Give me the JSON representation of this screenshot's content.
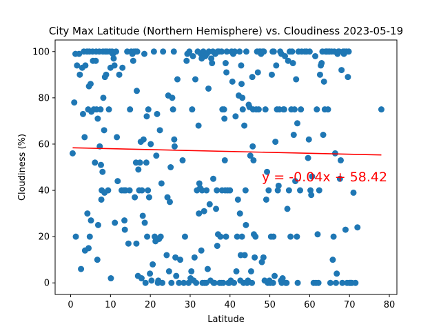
{
  "colors": {
    "points": "#1f77b4",
    "regression": "#ff0000",
    "annotation": "#ff0000",
    "axes": "#000000"
  },
  "chart_data": {
    "type": "scatter",
    "title": "City Max Latitude (Northern Hemisphere) vs. Cloudiness 2023-05-19",
    "xlabel": "Latitude",
    "ylabel": "Cloudiness (%)",
    "xlim": [
      -3.9,
      81.9
    ],
    "ylim": [
      -5,
      105
    ],
    "xticks": [
      0,
      10,
      20,
      30,
      40,
      50,
      60,
      70,
      80
    ],
    "yticks": [
      0,
      20,
      40,
      60,
      80,
      100
    ],
    "grid": false,
    "regression": {
      "slope": -0.04,
      "intercept": 58.42,
      "x_start": 0.5,
      "x_end": 78,
      "label": "y = -0.04x + 58.42",
      "label_x": 48,
      "label_y": 46
    },
    "points": [
      [
        0.5,
        56
      ],
      [
        0.9,
        78
      ],
      [
        1.2,
        99
      ],
      [
        1.3,
        20
      ],
      [
        1.6,
        94
      ],
      [
        2.1,
        99
      ],
      [
        2.3,
        90
      ],
      [
        2.6,
        6
      ],
      [
        2.9,
        93
      ],
      [
        3.1,
        73
      ],
      [
        3.3,
        100
      ],
      [
        3.5,
        63
      ],
      [
        3.6,
        14
      ],
      [
        3.7,
        94
      ],
      [
        4.1,
        100
      ],
      [
        4.2,
        30
      ],
      [
        4.4,
        75
      ],
      [
        4.5,
        15
      ],
      [
        4.6,
        85
      ],
      [
        4.7,
        100
      ],
      [
        4.8,
        20
      ],
      [
        5.0,
        86
      ],
      [
        5.1,
        27
      ],
      [
        5.2,
        74
      ],
      [
        5.5,
        100
      ],
      [
        5.6,
        96
      ],
      [
        5.8,
        75
      ],
      [
        6.1,
        52
      ],
      [
        6.3,
        96
      ],
      [
        6.4,
        100
      ],
      [
        6.5,
        75
      ],
      [
        6.7,
        10
      ],
      [
        6.8,
        71
      ],
      [
        6.9,
        25
      ],
      [
        7.2,
        100
      ],
      [
        7.3,
        59
      ],
      [
        7.5,
        75
      ],
      [
        7.6,
        51
      ],
      [
        7.7,
        36
      ],
      [
        7.8,
        40
      ],
      [
        8.0,
        48
      ],
      [
        8.1,
        100
      ],
      [
        8.2,
        80
      ],
      [
        8.4,
        66
      ],
      [
        8.5,
        39
      ],
      [
        8.6,
        89
      ],
      [
        8.7,
        100
      ],
      [
        8.9,
        90
      ],
      [
        9.1,
        100
      ],
      [
        9.4,
        40
      ],
      [
        9.6,
        75
      ],
      [
        9.8,
        100
      ],
      [
        10.0,
        93
      ],
      [
        10.1,
        2
      ],
      [
        10.4,
        100
      ],
      [
        10.6,
        99
      ],
      [
        10.8,
        97
      ],
      [
        11.0,
        94
      ],
      [
        11.1,
        26
      ],
      [
        11.4,
        100
      ],
      [
        11.6,
        63
      ],
      [
        11.8,
        44
      ],
      [
        12.2,
        90
      ],
      [
        12.8,
        40
      ],
      [
        13.0,
        93
      ],
      [
        13.4,
        40
      ],
      [
        13.5,
        27
      ],
      [
        13.6,
        23
      ],
      [
        13.8,
        40
      ],
      [
        14.2,
        100
      ],
      [
        14.5,
        17
      ],
      [
        14.8,
        40
      ],
      [
        14.9,
        75
      ],
      [
        15.2,
        100
      ],
      [
        15.5,
        99
      ],
      [
        15.7,
        96
      ],
      [
        15.9,
        100
      ],
      [
        16.1,
        37
      ],
      [
        16.3,
        100
      ],
      [
        16.4,
        52
      ],
      [
        16.5,
        17
      ],
      [
        16.6,
        83
      ],
      [
        16.7,
        100
      ],
      [
        16.9,
        3
      ],
      [
        17.0,
        49
      ],
      [
        17.2,
        40
      ],
      [
        17.4,
        52
      ],
      [
        17.6,
        61
      ],
      [
        17.8,
        2
      ],
      [
        17.9,
        40
      ],
      [
        18.1,
        29
      ],
      [
        18.3,
        62
      ],
      [
        18.5,
        99
      ],
      [
        18.6,
        26
      ],
      [
        18.8,
        0
      ],
      [
        19.0,
        52
      ],
      [
        19.1,
        72
      ],
      [
        19.2,
        20
      ],
      [
        19.4,
        40
      ],
      [
        19.5,
        75
      ],
      [
        19.7,
        37
      ],
      [
        19.9,
        4
      ],
      [
        20.1,
        60
      ],
      [
        20.3,
        1
      ],
      [
        20.6,
        8
      ],
      [
        20.9,
        100
      ],
      [
        21.1,
        20
      ],
      [
        21.3,
        18
      ],
      [
        21.5,
        55
      ],
      [
        21.7,
        73
      ],
      [
        21.9,
        0
      ],
      [
        22.0,
        1
      ],
      [
        22.2,
        19
      ],
      [
        22.4,
        66
      ],
      [
        22.6,
        20
      ],
      [
        22.8,
        43
      ],
      [
        23.0,
        0
      ],
      [
        23.2,
        100
      ],
      [
        24.1,
        12
      ],
      [
        24.3,
        37
      ],
      [
        24.5,
        81
      ],
      [
        24.7,
        5
      ],
      [
        24.9,
        35
      ],
      [
        25.1,
        50
      ],
      [
        25.3,
        0
      ],
      [
        25.5,
        80
      ],
      [
        25.7,
        75
      ],
      [
        25.9,
        100
      ],
      [
        26.0,
        62
      ],
      [
        26.1,
        59
      ],
      [
        26.3,
        11
      ],
      [
        26.5,
        3
      ],
      [
        26.8,
        88
      ],
      [
        27.2,
        0
      ],
      [
        27.5,
        10
      ],
      [
        28.1,
        53
      ],
      [
        28.4,
        0
      ],
      [
        28.7,
        20
      ],
      [
        29.1,
        96
      ],
      [
        29.3,
        99
      ],
      [
        29.6,
        0
      ],
      [
        29.8,
        100
      ],
      [
        30.1,
        2
      ],
      [
        30.3,
        5
      ],
      [
        30.5,
        75
      ],
      [
        30.7,
        98
      ],
      [
        30.9,
        1
      ],
      [
        31.1,
        11
      ],
      [
        31.3,
        88
      ],
      [
        31.5,
        0
      ],
      [
        31.7,
        40
      ],
      [
        31.9,
        100
      ],
      [
        32.1,
        68
      ],
      [
        32.2,
        30
      ],
      [
        32.3,
        43
      ],
      [
        32.5,
        41
      ],
      [
        32.7,
        99
      ],
      [
        32.8,
        14
      ],
      [
        32.9,
        97
      ],
      [
        33.0,
        40
      ],
      [
        33.1,
        0
      ],
      [
        33.3,
        100
      ],
      [
        33.5,
        31
      ],
      [
        33.6,
        0
      ],
      [
        33.8,
        98
      ],
      [
        34.0,
        0
      ],
      [
        34.1,
        40
      ],
      [
        34.2,
        99
      ],
      [
        34.4,
        6
      ],
      [
        34.6,
        84
      ],
      [
        34.7,
        100
      ],
      [
        34.9,
        34
      ],
      [
        35.1,
        1
      ],
      [
        35.3,
        97
      ],
      [
        35.5,
        95
      ],
      [
        35.7,
        100
      ],
      [
        35.8,
        45
      ],
      [
        35.9,
        0
      ],
      [
        36.1,
        0
      ],
      [
        36.3,
        99
      ],
      [
        36.5,
        32
      ],
      [
        36.7,
        40
      ],
      [
        36.8,
        16
      ],
      [
        36.9,
        100
      ],
      [
        37.0,
        21
      ],
      [
        37.2,
        100
      ],
      [
        37.4,
        0
      ],
      [
        37.6,
        20
      ],
      [
        37.8,
        0
      ],
      [
        37.9,
        100
      ],
      [
        38.0,
        40
      ],
      [
        38.1,
        75
      ],
      [
        38.3,
        0
      ],
      [
        38.5,
        75
      ],
      [
        38.6,
        71
      ],
      [
        38.7,
        53
      ],
      [
        38.8,
        40
      ],
      [
        38.9,
        95
      ],
      [
        39.0,
        20
      ],
      [
        39.1,
        91
      ],
      [
        39.2,
        100
      ],
      [
        39.4,
        40
      ],
      [
        39.6,
        0
      ],
      [
        39.8,
        0
      ],
      [
        40.0,
        40
      ],
      [
        40.2,
        1
      ],
      [
        40.4,
        100
      ],
      [
        40.6,
        87
      ],
      [
        40.8,
        99
      ],
      [
        41.0,
        0
      ],
      [
        41.2,
        100
      ],
      [
        41.4,
        72
      ],
      [
        41.6,
        5
      ],
      [
        41.8,
        20
      ],
      [
        42.0,
        36
      ],
      [
        42.2,
        81
      ],
      [
        42.4,
        100
      ],
      [
        42.5,
        30
      ],
      [
        42.6,
        1
      ],
      [
        42.7,
        12
      ],
      [
        42.8,
        94
      ],
      [
        42.9,
        86
      ],
      [
        43.0,
        20
      ],
      [
        43.1,
        80
      ],
      [
        43.2,
        75
      ],
      [
        43.4,
        0
      ],
      [
        43.6,
        68
      ],
      [
        43.7,
        12
      ],
      [
        43.9,
        40
      ],
      [
        44.0,
        25
      ],
      [
        44.1,
        100
      ],
      [
        44.3,
        0
      ],
      [
        44.5,
        1
      ],
      [
        44.7,
        77
      ],
      [
        44.9,
        76
      ],
      [
        45.1,
        55
      ],
      [
        45.3,
        5
      ],
      [
        45.5,
        0
      ],
      [
        45.6,
        89
      ],
      [
        45.7,
        59
      ],
      [
        45.8,
        75
      ],
      [
        45.9,
        53
      ],
      [
        46.0,
        21
      ],
      [
        46.2,
        11
      ],
      [
        46.4,
        20
      ],
      [
        46.6,
        75
      ],
      [
        46.8,
        100
      ],
      [
        47.0,
        91
      ],
      [
        47.2,
        75
      ],
      [
        47.4,
        100
      ],
      [
        47.6,
        100
      ],
      [
        47.8,
        99
      ],
      [
        48.0,
        9
      ],
      [
        48.2,
        100
      ],
      [
        48.4,
        11
      ],
      [
        48.5,
        100
      ],
      [
        48.7,
        1
      ],
      [
        48.9,
        75
      ],
      [
        49.1,
        36
      ],
      [
        49.3,
        48
      ],
      [
        49.5,
        0
      ],
      [
        49.7,
        40
      ],
      [
        49.9,
        1
      ],
      [
        50.1,
        0
      ],
      [
        50.3,
        20
      ],
      [
        50.5,
        90
      ],
      [
        50.7,
        100
      ],
      [
        50.8,
        0
      ],
      [
        50.9,
        20
      ],
      [
        51.0,
        100
      ],
      [
        51.2,
        3
      ],
      [
        51.4,
        61
      ],
      [
        51.6,
        94
      ],
      [
        51.8,
        75
      ],
      [
        52.0,
        40
      ],
      [
        52.2,
        42
      ],
      [
        52.4,
        75
      ],
      [
        52.6,
        100
      ],
      [
        52.8,
        1
      ],
      [
        52.9,
        99
      ],
      [
        53.0,
        0
      ],
      [
        53.2,
        2
      ],
      [
        53.4,
        75
      ],
      [
        53.6,
        75
      ],
      [
        53.8,
        98
      ],
      [
        54.0,
        0
      ],
      [
        54.2,
        0
      ],
      [
        54.4,
        32
      ],
      [
        54.6,
        96
      ],
      [
        54.8,
        40
      ],
      [
        55.0,
        100
      ],
      [
        55.2,
        20
      ],
      [
        55.4,
        75
      ],
      [
        55.6,
        100
      ],
      [
        55.8,
        95
      ],
      [
        56.0,
        64
      ],
      [
        56.2,
        75
      ],
      [
        56.4,
        44
      ],
      [
        56.6,
        88
      ],
      [
        56.8,
        20
      ],
      [
        56.9,
        69
      ],
      [
        57.0,
        0
      ],
      [
        57.2,
        100
      ],
      [
        57.6,
        40
      ],
      [
        57.8,
        75
      ],
      [
        58.0,
        100
      ],
      [
        58.8,
        100
      ],
      [
        59.2,
        100
      ],
      [
        59.6,
        54
      ],
      [
        59.8,
        62
      ],
      [
        60.0,
        100
      ],
      [
        60.2,
        40
      ],
      [
        60.4,
        38
      ],
      [
        60.6,
        46
      ],
      [
        61.0,
        0
      ],
      [
        61.4,
        98
      ],
      [
        61.6,
        0
      ],
      [
        61.8,
        75
      ],
      [
        62.0,
        21
      ],
      [
        62.2,
        0
      ],
      [
        62.4,
        40
      ],
      [
        62.6,
        90
      ],
      [
        62.8,
        94
      ],
      [
        63.0,
        95
      ],
      [
        63.2,
        100
      ],
      [
        63.4,
        64
      ],
      [
        63.6,
        87
      ],
      [
        63.8,
        75
      ],
      [
        64.0,
        100
      ],
      [
        64.2,
        100
      ],
      [
        64.4,
        100
      ],
      [
        64.6,
        75
      ],
      [
        64.8,
        100
      ],
      [
        65.0,
        100
      ],
      [
        65.2,
        0
      ],
      [
        65.5,
        100
      ],
      [
        65.8,
        10
      ],
      [
        66.0,
        20
      ],
      [
        66.2,
        100
      ],
      [
        66.4,
        56
      ],
      [
        66.6,
        0
      ],
      [
        66.8,
        4
      ],
      [
        67.0,
        99
      ],
      [
        67.2,
        100
      ],
      [
        67.4,
        100
      ],
      [
        67.6,
        45
      ],
      [
        67.8,
        53
      ],
      [
        68.0,
        92
      ],
      [
        68.2,
        0
      ],
      [
        68.4,
        100
      ],
      [
        68.6,
        99
      ],
      [
        68.8,
        100
      ],
      [
        69.0,
        23
      ],
      [
        69.2,
        100
      ],
      [
        69.4,
        0
      ],
      [
        69.6,
        89
      ],
      [
        69.8,
        100
      ],
      [
        70.0,
        0
      ],
      [
        70.3,
        0
      ],
      [
        70.6,
        0
      ],
      [
        71.0,
        39
      ],
      [
        71.5,
        0
      ],
      [
        72.0,
        24
      ],
      [
        78.0,
        75
      ]
    ]
  }
}
